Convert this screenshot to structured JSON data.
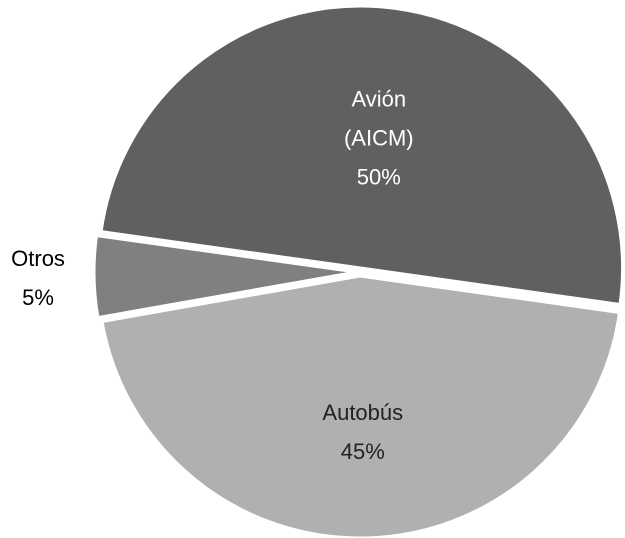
{
  "chart_data": {
    "type": "pie",
    "categories": [
      "Avión (AICM)",
      "Autobús",
      "Otros"
    ],
    "values": [
      50,
      45,
      5
    ],
    "value_labels": [
      "50%",
      "45%",
      "5%"
    ],
    "colors": [
      "#606060",
      "#b0b0b0",
      "#808080"
    ]
  }
}
